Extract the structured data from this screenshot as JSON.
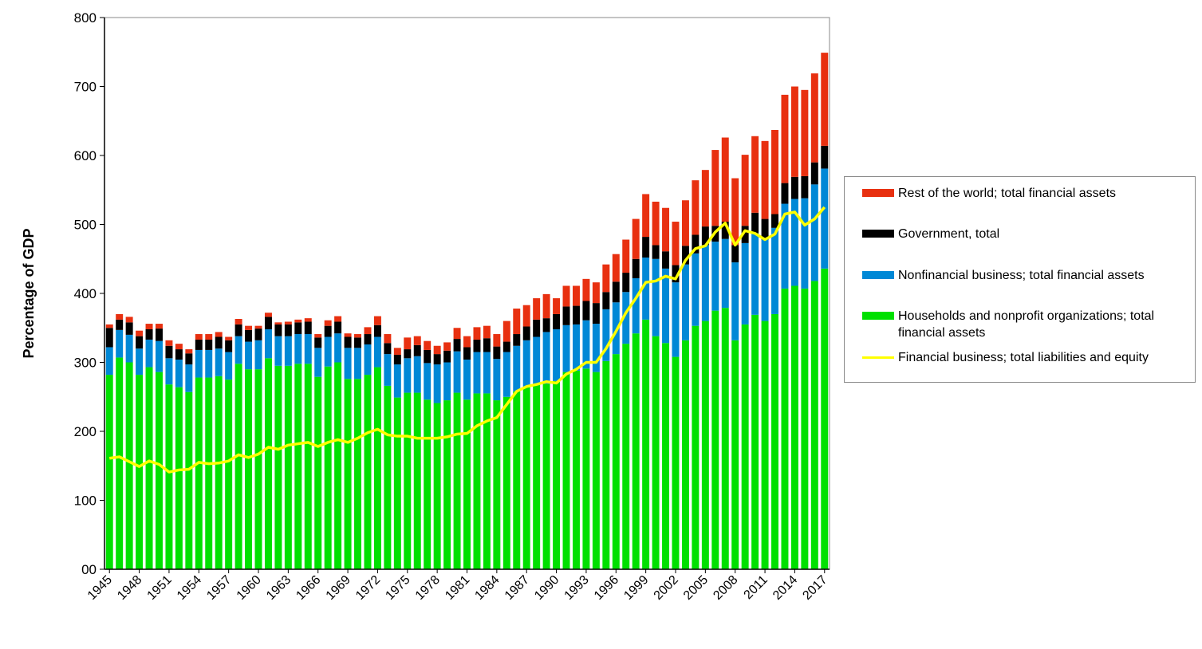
{
  "chart_data": {
    "type": "bar",
    "stacked": true,
    "title": "",
    "xlabel": "",
    "ylabel": "Percentage of GDP",
    "ylim": [
      0,
      800
    ],
    "yticks": [
      "00",
      "100",
      "200",
      "300",
      "400",
      "500",
      "600",
      "700",
      "800"
    ],
    "xtick_labels": [
      "1945",
      "1948",
      "1951",
      "1954",
      "1957",
      "1960",
      "1963",
      "1966",
      "1969",
      "1972",
      "1975",
      "1978",
      "1981",
      "1984",
      "1987",
      "1990",
      "1993",
      "1996",
      "1999",
      "2002",
      "2005",
      "2008",
      "2011",
      "2014",
      "2017"
    ],
    "categories": [
      1945,
      1946,
      1947,
      1948,
      1949,
      1950,
      1951,
      1952,
      1953,
      1954,
      1955,
      1956,
      1957,
      1958,
      1959,
      1960,
      1961,
      1962,
      1963,
      1964,
      1965,
      1966,
      1967,
      1968,
      1969,
      1970,
      1971,
      1972,
      1973,
      1974,
      1975,
      1976,
      1977,
      1978,
      1979,
      1980,
      1981,
      1982,
      1983,
      1984,
      1985,
      1986,
      1987,
      1988,
      1989,
      1990,
      1991,
      1992,
      1993,
      1994,
      1995,
      1996,
      1997,
      1998,
      1999,
      2000,
      2001,
      2002,
      2003,
      2004,
      2005,
      2006,
      2007,
      2008,
      2009,
      2010,
      2011,
      2012,
      2013,
      2014,
      2015,
      2016,
      2017
    ],
    "legend_position": "right",
    "grid": false,
    "series": [
      {
        "name": "Households and nonprofit organizations; total financial assets",
        "color": "#00e000",
        "values": [
          282,
          307,
          300,
          282,
          293,
          286,
          268,
          264,
          257,
          278,
          278,
          280,
          275,
          298,
          290,
          290,
          306,
          295,
          295,
          298,
          298,
          279,
          294,
          300,
          276,
          276,
          282,
          293,
          266,
          249,
          256,
          256,
          246,
          241,
          245,
          256,
          246,
          255,
          255,
          245,
          250,
          258,
          264,
          267,
          269,
          273,
          286,
          288,
          291,
          286,
          302,
          312,
          327,
          342,
          362,
          338,
          328,
          308,
          332,
          353,
          360,
          375,
          379,
          332,
          355,
          369,
          360,
          370,
          407,
          411,
          407,
          418,
          436
        ],
        "labels": []
      },
      {
        "name": "Nonfinancial business; total financial assets",
        "color": "#0088d6",
        "values": [
          40,
          40,
          40,
          38,
          40,
          45,
          38,
          40,
          40,
          40,
          40,
          40,
          40,
          40,
          40,
          42,
          42,
          43,
          43,
          43,
          43,
          42,
          43,
          42,
          45,
          45,
          44,
          44,
          46,
          48,
          50,
          53,
          53,
          56,
          55,
          60,
          58,
          60,
          60,
          60,
          65,
          66,
          68,
          70,
          75,
          75,
          68,
          67,
          70,
          70,
          75,
          75,
          75,
          80,
          90,
          112,
          108,
          108,
          110,
          105,
          110,
          100,
          100,
          113,
          118,
          118,
          118,
          125,
          123,
          126,
          131,
          140,
          145
        ],
        "labels": []
      },
      {
        "name": "Government, total",
        "color": "#000000",
        "values": [
          28,
          15,
          18,
          18,
          15,
          18,
          18,
          15,
          16,
          15,
          15,
          17,
          17,
          17,
          17,
          17,
          18,
          17,
          17,
          17,
          18,
          15,
          16,
          17,
          16,
          15,
          15,
          17,
          16,
          14,
          13,
          16,
          19,
          15,
          17,
          18,
          18,
          18,
          20,
          18,
          15,
          17,
          20,
          25,
          20,
          22,
          27,
          27,
          28,
          30,
          25,
          30,
          28,
          28,
          30,
          20,
          25,
          25,
          27,
          27,
          27,
          23,
          25,
          25,
          25,
          30,
          30,
          20,
          30,
          32,
          32,
          32,
          33
        ],
        "labels": []
      },
      {
        "name": "Rest of the world; total financial assets",
        "color": "#e83010",
        "values": [
          5,
          8,
          8,
          8,
          8,
          7,
          8,
          8,
          6,
          8,
          8,
          7,
          5,
          8,
          6,
          4,
          6,
          3,
          4,
          4,
          5,
          5,
          8,
          8,
          5,
          5,
          10,
          13,
          13,
          10,
          17,
          13,
          13,
          12,
          12,
          16,
          16,
          18,
          18,
          18,
          30,
          37,
          31,
          31,
          35,
          23,
          30,
          29,
          32,
          30,
          40,
          40,
          48,
          58,
          62,
          63,
          63,
          63,
          66,
          79,
          82,
          110,
          122,
          97,
          103,
          111,
          113,
          122,
          128,
          131,
          125,
          129,
          135
        ],
        "labels": []
      }
    ],
    "lines": [
      {
        "name": "Financial business; total liabilities and equity",
        "color": "#ffff00",
        "values": [
          161,
          163,
          156,
          149,
          157,
          152,
          141,
          144,
          145,
          155,
          153,
          154,
          157,
          166,
          162,
          167,
          177,
          174,
          180,
          182,
          184,
          178,
          184,
          188,
          184,
          190,
          198,
          203,
          195,
          193,
          193,
          190,
          190,
          190,
          192,
          196,
          197,
          208,
          215,
          220,
          239,
          258,
          265,
          268,
          272,
          270,
          283,
          290,
          300,
          300,
          320,
          345,
          372,
          393,
          416,
          418,
          425,
          421,
          448,
          465,
          469,
          489,
          502,
          470,
          491,
          487,
          478,
          486,
          515,
          518,
          499,
          508,
          525
        ],
        "labels": []
      }
    ]
  }
}
